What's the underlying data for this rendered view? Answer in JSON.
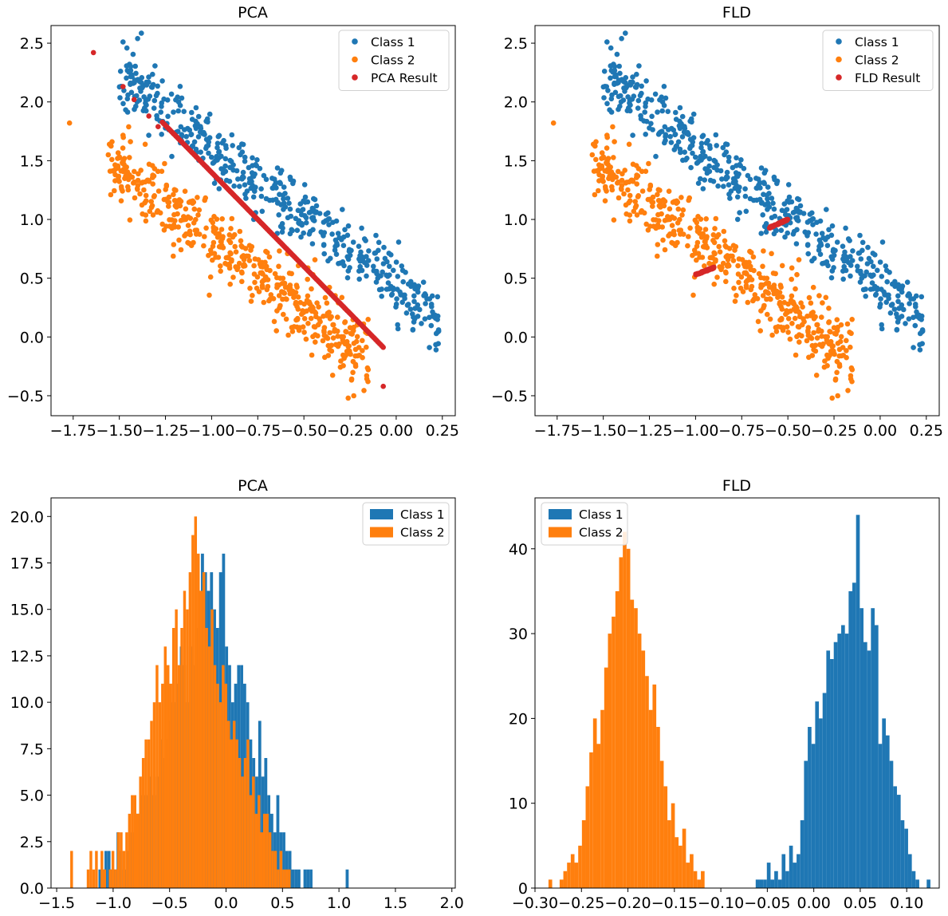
{
  "colors": {
    "class1": "#1f77b4",
    "class2": "#ff7f0e",
    "result": "#d62728"
  },
  "chart_data": [
    {
      "type": "scatter",
      "title": "PCA",
      "xlim": [
        -1.87,
        0.32
      ],
      "ylim": [
        -0.67,
        2.65
      ],
      "xticks": [
        -1.75,
        -1.5,
        -1.25,
        -1.0,
        -0.75,
        -0.5,
        -0.25,
        0.0,
        0.25
      ],
      "xtick_labels": [
        "−1.75",
        "−1.50",
        "−1.25",
        "−1.00",
        "−0.75",
        "−0.50",
        "−0.25",
        "0.00",
        "0.25"
      ],
      "yticks": [
        -0.5,
        0.0,
        0.5,
        1.0,
        1.5,
        2.0,
        2.5
      ],
      "ytick_labels": [
        "−0.5",
        "0.0",
        "0.5",
        "1.0",
        "1.5",
        "2.0",
        "2.5"
      ],
      "legend_position": "top-right",
      "series": [
        {
          "name": "Class 1",
          "color": "#1f77b4",
          "generator": {
            "x_range": [
              -1.5,
              0.23
            ],
            "slope": -1.2,
            "intercept": 0.43,
            "noise": 0.14,
            "count": 500,
            "seed": 11
          },
          "points": [
            [
              -1.48,
              2.51
            ],
            [
              -1.44,
              2.16
            ],
            [
              -1.17,
              1.97
            ],
            [
              0.23,
              0.05
            ],
            [
              0.18,
              -0.09
            ],
            [
              0.09,
              0.06
            ],
            [
              0.01,
              0.07
            ],
            [
              -0.1,
              0.5
            ]
          ]
        },
        {
          "name": "Class 2",
          "color": "#ff7f0e",
          "generator": {
            "x_range": [
              -1.56,
              -0.15
            ],
            "slope": -1.2,
            "intercept": -0.35,
            "noise": 0.14,
            "count": 500,
            "seed": 23
          },
          "points": [
            [
              -1.77,
              1.82
            ],
            [
              -1.56,
              1.55
            ],
            [
              -1.36,
              1.64
            ],
            [
              -0.26,
              -0.52
            ],
            [
              -0.23,
              -0.5
            ],
            [
              -0.16,
              -0.33
            ],
            [
              -0.35,
              -0.12
            ],
            [
              -1.55,
              1.41
            ]
          ]
        },
        {
          "name": "PCA Result",
          "color": "#d62728",
          "line": {
            "x_range": [
              -1.64,
              -0.07
            ],
            "slope": -1.6,
            "intercept": -0.2,
            "count": 300
          },
          "points": [
            [
              -1.64,
              2.42
            ],
            [
              -1.48,
              2.13
            ],
            [
              -1.42,
              2.02
            ],
            [
              -1.34,
              1.88
            ],
            [
              -1.29,
              1.79
            ],
            [
              -0.07,
              -0.42
            ]
          ]
        }
      ]
    },
    {
      "type": "scatter",
      "title": "FLD",
      "xlim": [
        -1.87,
        0.32
      ],
      "ylim": [
        -0.67,
        2.65
      ],
      "xticks": [
        -1.75,
        -1.5,
        -1.25,
        -1.0,
        -0.75,
        -0.5,
        -0.25,
        0.0,
        0.25
      ],
      "xtick_labels": [
        "−1.75",
        "−1.50",
        "−1.25",
        "−1.00",
        "−0.75",
        "−0.50",
        "−0.25",
        "0.00",
        "0.25"
      ],
      "yticks": [
        -0.5,
        0.0,
        0.5,
        1.0,
        1.5,
        2.0,
        2.5
      ],
      "ytick_labels": [
        "−0.5",
        "0.0",
        "0.5",
        "1.0",
        "1.5",
        "2.0",
        "2.5"
      ],
      "legend_position": "top-right",
      "series": [
        {
          "name": "Class 1",
          "color": "#1f77b4",
          "generator": {
            "x_range": [
              -1.5,
              0.23
            ],
            "slope": -1.2,
            "intercept": 0.43,
            "noise": 0.14,
            "count": 500,
            "seed": 11
          },
          "points": [
            [
              -1.48,
              2.51
            ],
            [
              -1.44,
              2.16
            ],
            [
              -1.17,
              1.97
            ],
            [
              0.23,
              0.05
            ],
            [
              0.18,
              -0.09
            ],
            [
              0.09,
              0.06
            ],
            [
              0.01,
              0.07
            ],
            [
              -0.1,
              0.5
            ]
          ]
        },
        {
          "name": "Class 2",
          "color": "#ff7f0e",
          "generator": {
            "x_range": [
              -1.56,
              -0.15
            ],
            "slope": -1.2,
            "intercept": -0.35,
            "noise": 0.14,
            "count": 500,
            "seed": 23
          },
          "points": [
            [
              -1.77,
              1.82
            ],
            [
              -1.56,
              1.55
            ],
            [
              -1.36,
              1.64
            ],
            [
              -0.26,
              -0.52
            ],
            [
              -0.23,
              -0.5
            ],
            [
              -0.16,
              -0.33
            ],
            [
              -0.35,
              -0.12
            ],
            [
              -1.55,
              1.41
            ]
          ]
        },
        {
          "name": "FLD Result",
          "color": "#d62728",
          "clusters": [
            {
              "x_range": [
                -1.0,
                -0.9
              ],
              "y_range": [
                0.53,
                0.59
              ],
              "count": 60
            },
            {
              "x_range": [
                -0.6,
                -0.5
              ],
              "y_range": [
                0.93,
                1.0
              ],
              "count": 60
            }
          ]
        }
      ]
    },
    {
      "type": "histogram",
      "title": "PCA",
      "xlim": [
        -1.55,
        2.03
      ],
      "ylim": [
        0,
        21.0
      ],
      "xticks": [
        -1.5,
        -1.0,
        -0.5,
        0.0,
        0.5,
        1.0,
        1.5,
        2.0
      ],
      "xtick_labels": [
        "−1.5",
        "−1.0",
        "−0.5",
        "0.0",
        "0.5",
        "1.0",
        "1.5",
        "2.0"
      ],
      "yticks": [
        0.0,
        2.5,
        5.0,
        7.5,
        10.0,
        12.5,
        15.0,
        17.5,
        20.0
      ],
      "ytick_labels": [
        "0.0",
        "2.5",
        "5.0",
        "7.5",
        "10.0",
        "12.5",
        "15.0",
        "17.5",
        "20.0"
      ],
      "legend_position": "top-right",
      "series": [
        {
          "name": "Class 1",
          "color": "#1f77b4",
          "bin_start": -1.13,
          "bin_width": 0.0267,
          "counts": [
            1,
            1,
            2,
            2,
            1,
            1,
            3,
            2,
            1,
            2,
            3,
            3,
            4,
            4,
            5,
            5,
            5,
            6,
            5,
            6,
            8,
            7,
            8,
            9,
            10,
            10,
            11,
            13,
            12,
            10,
            13,
            12,
            14,
            16,
            18,
            17,
            16,
            17,
            15,
            14,
            17,
            18,
            13,
            12,
            10,
            11,
            12,
            12,
            11,
            10,
            8,
            7,
            6,
            9,
            6,
            7,
            5,
            4,
            3,
            5,
            3,
            3,
            2,
            2,
            1,
            1,
            1,
            0,
            1,
            1,
            1,
            0,
            0,
            0,
            0,
            0,
            0,
            0,
            0,
            0,
            0,
            0,
            1
          ]
        },
        {
          "name": "Class 2",
          "color": "#ff7f0e",
          "bin_start": -1.38,
          "bin_width": 0.0244,
          "counts": [
            2,
            0,
            0,
            0,
            0,
            0,
            1,
            2,
            1,
            2,
            0,
            2,
            1,
            0,
            1,
            2,
            1,
            3,
            3,
            2,
            3,
            4,
            5,
            5,
            4,
            6,
            7,
            8,
            8,
            9,
            10,
            12,
            10,
            11,
            13,
            12,
            11,
            14,
            15,
            12,
            14,
            16,
            15,
            17,
            19,
            20,
            18,
            16,
            17,
            14,
            13,
            15,
            12,
            11,
            10,
            12,
            11,
            9,
            8,
            9,
            8,
            7,
            6,
            7,
            8,
            5,
            6,
            4,
            5,
            3,
            4,
            4,
            3,
            2,
            2,
            1,
            2,
            1,
            1,
            1
          ]
        }
      ]
    },
    {
      "type": "histogram",
      "title": "FLD",
      "xlim": [
        -0.3,
        0.135
      ],
      "ylim": [
        0,
        46
      ],
      "xticks": [
        -0.3,
        -0.25,
        -0.2,
        -0.15,
        -0.1,
        -0.05,
        0.0,
        0.05,
        0.1
      ],
      "xtick_labels": [
        "−0.30",
        "−0.25",
        "−0.20",
        "−0.15",
        "−0.10",
        "−0.05",
        "0.00",
        "0.05",
        "0.10"
      ],
      "yticks": [
        0,
        10,
        20,
        30,
        40
      ],
      "ytick_labels": [
        "0",
        "10",
        "20",
        "30",
        "40"
      ],
      "legend_position": "top-left",
      "series": [
        {
          "name": "Class 1",
          "color": "#1f77b4",
          "bin_start": -0.0625,
          "bin_width": 0.004,
          "counts": [
            1,
            1,
            1,
            3,
            1,
            2,
            1,
            4,
            2,
            5,
            3,
            4,
            8,
            15,
            19,
            17,
            22,
            20,
            23,
            28,
            27,
            29,
            30,
            31,
            30,
            35,
            36,
            44,
            33,
            29,
            28,
            33,
            31,
            17,
            20,
            18,
            15,
            12,
            11,
            8,
            7,
            4,
            2,
            1,
            0,
            0,
            1,
            0,
            0,
            0
          ]
        },
        {
          "name": "Class 2",
          "color": "#ff7f0e",
          "bin_start": -0.2855,
          "bin_width": 0.004,
          "counts": [
            1,
            0,
            0,
            1,
            2,
            3,
            4,
            3,
            5,
            8,
            12,
            16,
            20,
            17,
            21,
            26,
            30,
            32,
            35,
            39,
            42,
            40,
            34,
            33,
            30,
            28,
            25,
            21,
            24,
            19,
            15,
            12,
            8,
            10,
            6,
            5,
            7,
            3,
            4,
            2,
            1,
            2
          ]
        }
      ]
    }
  ]
}
